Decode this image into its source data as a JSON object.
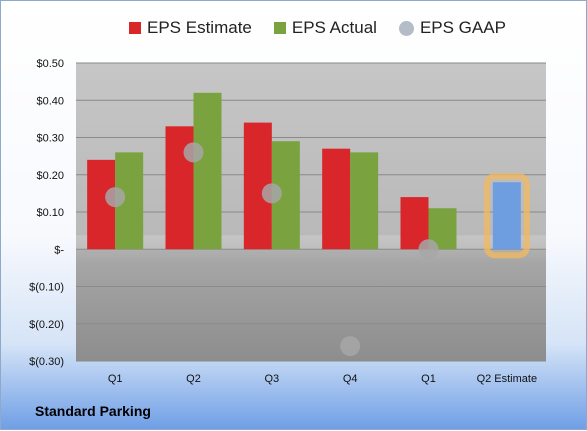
{
  "company_name": "Standard Parking",
  "chart_data": {
    "type": "bar",
    "categories": [
      "Q1",
      "Q2",
      "Q3",
      "Q4",
      "Q1",
      "Q2 Estimate"
    ],
    "series": [
      {
        "name": "EPS Estimate",
        "color": "#d9262b",
        "values": [
          0.24,
          0.33,
          0.34,
          0.27,
          0.14,
          null
        ]
      },
      {
        "name": "EPS Actual",
        "color": "#7aa23e",
        "values": [
          0.26,
          0.42,
          0.29,
          0.26,
          0.11,
          0.18
        ]
      },
      {
        "name": "EPS GAAP",
        "color": "#b4bcc8",
        "values": [
          0.14,
          0.26,
          0.15,
          -0.26,
          0.0,
          null
        ]
      }
    ],
    "highlight": {
      "category_index": 5,
      "color": "#6f9ee0",
      "glow": "#f4b85c"
    },
    "yticks": [
      0.5,
      0.4,
      0.3,
      0.2,
      0.1,
      0,
      -0.1,
      -0.2,
      -0.3
    ],
    "ytick_labels": [
      "$0.50",
      "$0.40",
      "$0.30",
      "$0.20",
      "$0.10",
      "$-",
      "$(0.10)",
      "$(0.20)",
      "$(0.30)"
    ],
    "ylim": [
      -0.3,
      0.5
    ],
    "grid": true,
    "legend_position": "top"
  }
}
